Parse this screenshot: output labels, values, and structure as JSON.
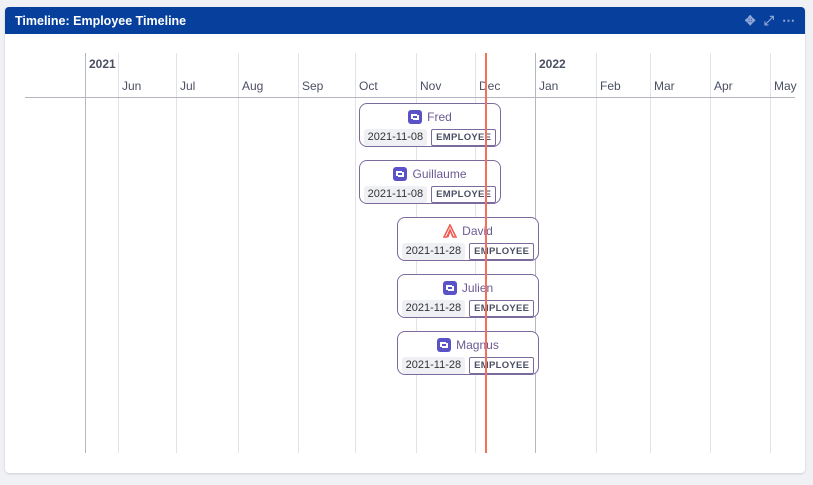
{
  "header": {
    "title": "Timeline: Employee Timeline",
    "icons": [
      "move-icon",
      "expand-icon",
      "more-icon"
    ]
  },
  "timeline": {
    "years": [
      "2021",
      "2022"
    ],
    "months": [
      "Jun",
      "Jul",
      "Aug",
      "Sep",
      "Oct",
      "Nov",
      "Dec",
      "Jan",
      "Feb",
      "Mar",
      "Apr",
      "May"
    ],
    "now_color": "#f46f5c",
    "items": [
      {
        "name": "Fred",
        "date": "2021-11-08",
        "type": "EMPLOYEE",
        "icon": "ops-icon"
      },
      {
        "name": "Guillaume",
        "date": "2021-11-08",
        "type": "EMPLOYEE",
        "icon": "ops-icon"
      },
      {
        "name": "David",
        "date": "2021-11-28",
        "type": "EMPLOYEE",
        "icon": "atlassian-icon"
      },
      {
        "name": "Julien",
        "date": "2021-11-28",
        "type": "EMPLOYEE",
        "icon": "ops-icon"
      },
      {
        "name": "Magnus",
        "date": "2021-11-28",
        "type": "EMPLOYEE",
        "icon": "ops-icon"
      }
    ]
  }
}
